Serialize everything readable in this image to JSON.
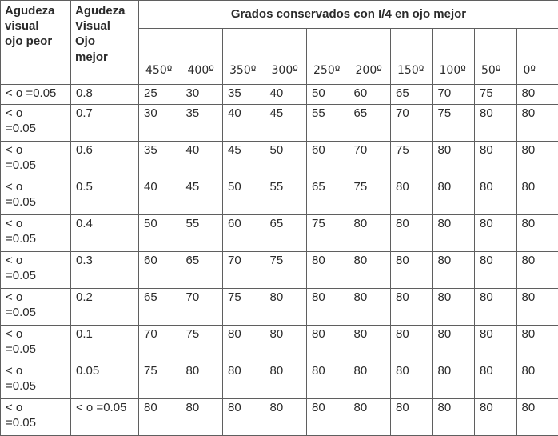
{
  "table": {
    "header": {
      "col_peor": "Agudeza\nvisual\nojo peor",
      "col_mejor": "Agudeza\nVisual\nOjo\nmejor",
      "span_title": "Grados conservados con I/4 en ojo mejor",
      "degree_columns": [
        "450º",
        "400º",
        "350º",
        "300º",
        "250º",
        "200º",
        "150º",
        "100º",
        "50º",
        "0º"
      ]
    },
    "rows": [
      {
        "peor": "< o =0.05",
        "mejor": "0.8",
        "values": [
          25,
          30,
          35,
          40,
          50,
          60,
          65,
          70,
          75,
          80
        ]
      },
      {
        "peor": "< o\n=0.05",
        "mejor": "0.7",
        "values": [
          30,
          35,
          40,
          45,
          55,
          65,
          70,
          75,
          80,
          80
        ]
      },
      {
        "peor": "< o\n=0.05",
        "mejor": "0.6",
        "values": [
          35,
          40,
          45,
          50,
          60,
          70,
          75,
          80,
          80,
          80
        ]
      },
      {
        "peor": "< o\n=0.05",
        "mejor": "0.5",
        "values": [
          40,
          45,
          50,
          55,
          65,
          75,
          80,
          80,
          80,
          80
        ]
      },
      {
        "peor": "< o\n=0.05",
        "mejor": "0.4",
        "values": [
          50,
          55,
          60,
          65,
          75,
          80,
          80,
          80,
          80,
          80
        ]
      },
      {
        "peor": "< o\n=0.05",
        "mejor": "0.3",
        "values": [
          60,
          65,
          70,
          75,
          80,
          80,
          80,
          80,
          80,
          80
        ]
      },
      {
        "peor": "< o\n=0.05",
        "mejor": "0.2",
        "values": [
          65,
          70,
          75,
          80,
          80,
          80,
          80,
          80,
          80,
          80
        ]
      },
      {
        "peor": "< o\n=0.05",
        "mejor": "0.1",
        "values": [
          70,
          75,
          80,
          80,
          80,
          80,
          80,
          80,
          80,
          80
        ]
      },
      {
        "peor": "< o\n=0.05",
        "mejor": "0.05",
        "values": [
          75,
          80,
          80,
          80,
          80,
          80,
          80,
          80,
          80,
          80
        ]
      },
      {
        "peor": "< o\n=0.05",
        "mejor": "< o =0.05",
        "values": [
          80,
          80,
          80,
          80,
          80,
          80,
          80,
          80,
          80,
          80
        ]
      }
    ]
  },
  "colors": {
    "border": "#5f5f5f",
    "text": "#2b2b2b",
    "background": "#ffffff"
  }
}
